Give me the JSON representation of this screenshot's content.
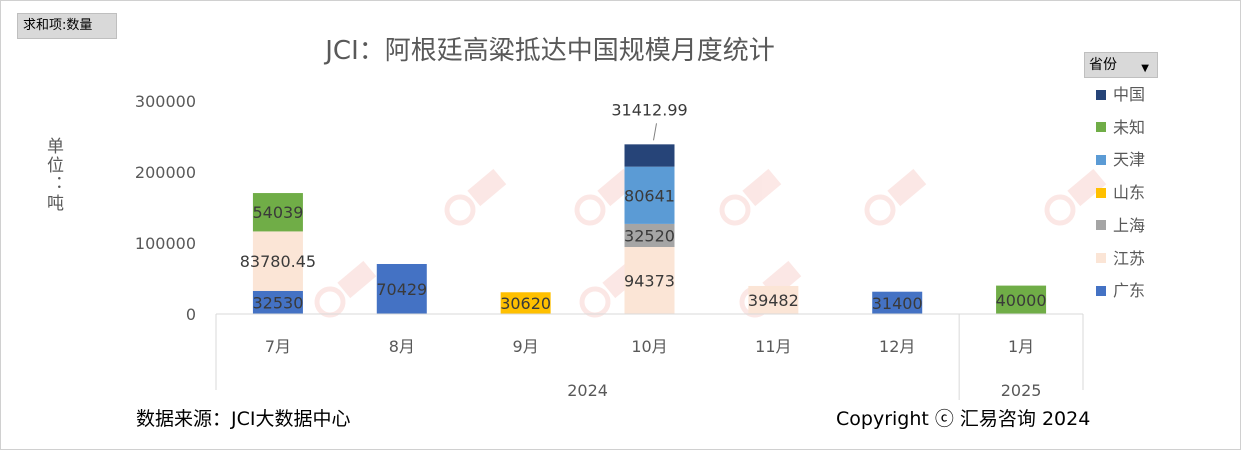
{
  "pivot_label": "求和项:数量",
  "source": "数据来源：JCI大数据中心",
  "copyright": "Copyright ⓒ 汇易咨询 2024",
  "legend_header": "省份",
  "chart_data": {
    "type": "bar",
    "stacked": true,
    "title": "JCI：阿根廷高粱抵达中国规模月度统计",
    "ylabel": "单位：吨",
    "ylim": [
      0,
      300000
    ],
    "yticks": [
      0,
      100000,
      200000,
      300000
    ],
    "categories": [
      "7月",
      "8月",
      "9月",
      "10月",
      "11月",
      "12月",
      "1月"
    ],
    "year_groups": [
      {
        "label": "2024",
        "categories": [
          "7月",
          "8月",
          "9月",
          "10月",
          "11月",
          "12月"
        ]
      },
      {
        "label": "2025",
        "categories": [
          "1月"
        ]
      }
    ],
    "legend_position": "right",
    "grid": false,
    "series": [
      {
        "name": "广东",
        "color": "#4472c4",
        "values": [
          32530,
          70429,
          null,
          null,
          null,
          31400,
          null
        ]
      },
      {
        "name": "江苏",
        "color": "#fbe5d6",
        "values": [
          83780.45,
          null,
          null,
          94373,
          39482,
          null,
          null
        ]
      },
      {
        "name": "上海",
        "color": "#a5a5a5",
        "values": [
          null,
          null,
          null,
          32520,
          null,
          null,
          null
        ]
      },
      {
        "name": "山东",
        "color": "#ffc000",
        "values": [
          null,
          null,
          30620,
          null,
          null,
          null,
          null
        ]
      },
      {
        "name": "天津",
        "color": "#5b9bd5",
        "values": [
          null,
          null,
          null,
          80641,
          null,
          null,
          null
        ]
      },
      {
        "name": "未知",
        "color": "#70ad47",
        "values": [
          54039,
          null,
          null,
          null,
          null,
          null,
          40000
        ]
      },
      {
        "name": "中国",
        "color": "#264478",
        "values": [
          null,
          null,
          null,
          31412.99,
          null,
          null,
          null
        ]
      }
    ]
  }
}
